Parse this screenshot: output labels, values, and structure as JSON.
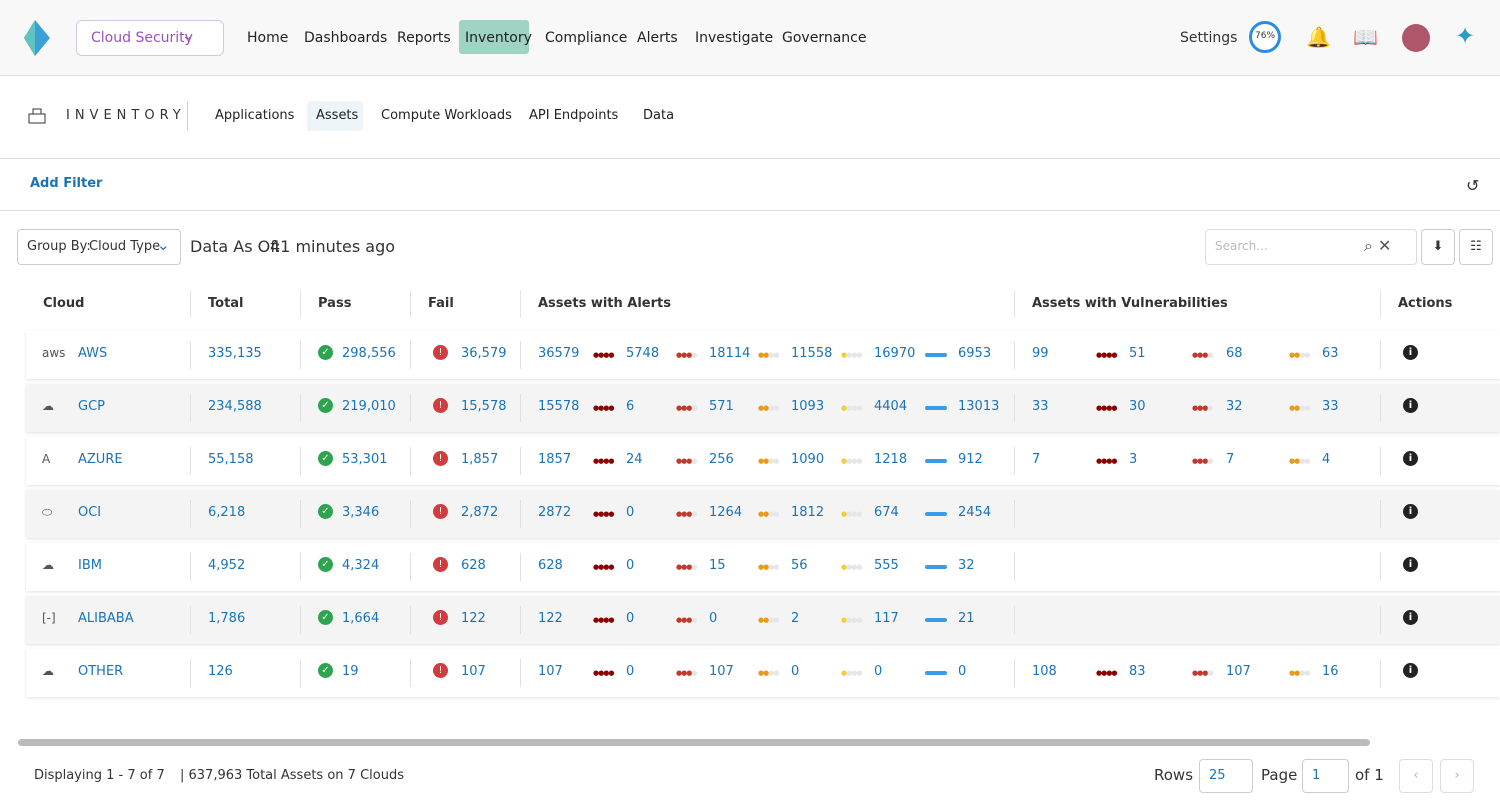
{
  "nav": {
    "brand": "Cloud Security",
    "items": [
      "Home",
      "Dashboards",
      "Reports",
      "Inventory",
      "Compliance",
      "Alerts",
      "Investigate",
      "Governance"
    ],
    "settings": "Settings",
    "score": "76%"
  },
  "subnav": {
    "title": "INVENTORY",
    "tabs": [
      "Applications",
      "Assets",
      "Compute Workloads",
      "API Endpoints",
      "Data"
    ]
  },
  "filter": {
    "add": "Add Filter"
  },
  "toolbar": {
    "group_by_label": "Group By:",
    "group_by_value": "Cloud Type",
    "data_as_of_label": "Data As Of:",
    "data_as_of_value": "41 minutes ago",
    "search_placeholder": "Search..."
  },
  "table": {
    "columns": [
      "Cloud",
      "Total",
      "Pass",
      "Fail",
      "Assets with Alerts",
      "Assets with Vulnerabilities",
      "Actions"
    ],
    "rows": [
      {
        "cloud": "AWS",
        "total": "335,135",
        "pass": "298,556",
        "fail": "36,579",
        "alerts": [
          "36579",
          "5748",
          "18114",
          "11558",
          "16970",
          "6953"
        ],
        "vulns": [
          "99",
          "51",
          "68",
          "63"
        ]
      },
      {
        "cloud": "GCP",
        "total": "234,588",
        "pass": "219,010",
        "fail": "15,578",
        "alerts": [
          "15578",
          "6",
          "571",
          "1093",
          "4404",
          "13013"
        ],
        "vulns": [
          "33",
          "30",
          "32",
          "33"
        ]
      },
      {
        "cloud": "AZURE",
        "total": "55,158",
        "pass": "53,301",
        "fail": "1,857",
        "alerts": [
          "1857",
          "24",
          "256",
          "1090",
          "1218",
          "912"
        ],
        "vulns": [
          "7",
          "3",
          "7",
          "4"
        ]
      },
      {
        "cloud": "OCI",
        "total": "6,218",
        "pass": "3,346",
        "fail": "2,872",
        "alerts": [
          "2872",
          "0",
          "1264",
          "1812",
          "674",
          "2454"
        ],
        "vulns": []
      },
      {
        "cloud": "IBM",
        "total": "4,952",
        "pass": "4,324",
        "fail": "628",
        "alerts": [
          "628",
          "0",
          "15",
          "56",
          "555",
          "32"
        ],
        "vulns": []
      },
      {
        "cloud": "ALIBABA",
        "total": "1,786",
        "pass": "1,664",
        "fail": "122",
        "alerts": [
          "122",
          "0",
          "0",
          "2",
          "117",
          "21"
        ],
        "vulns": []
      },
      {
        "cloud": "OTHER",
        "total": "126",
        "pass": "19",
        "fail": "107",
        "alerts": [
          "107",
          "0",
          "107",
          "0",
          "0",
          "0"
        ],
        "vulns": [
          "108",
          "83",
          "107",
          "16"
        ]
      }
    ]
  },
  "footer": {
    "displaying": "Displaying 1 - 7 of 7",
    "summary": "| 637,963 Total Assets on 7 Clouds",
    "rows_label": "Rows",
    "rows_value": "25",
    "page_label": "Page",
    "page_value": "1",
    "page_of": "of 1"
  }
}
